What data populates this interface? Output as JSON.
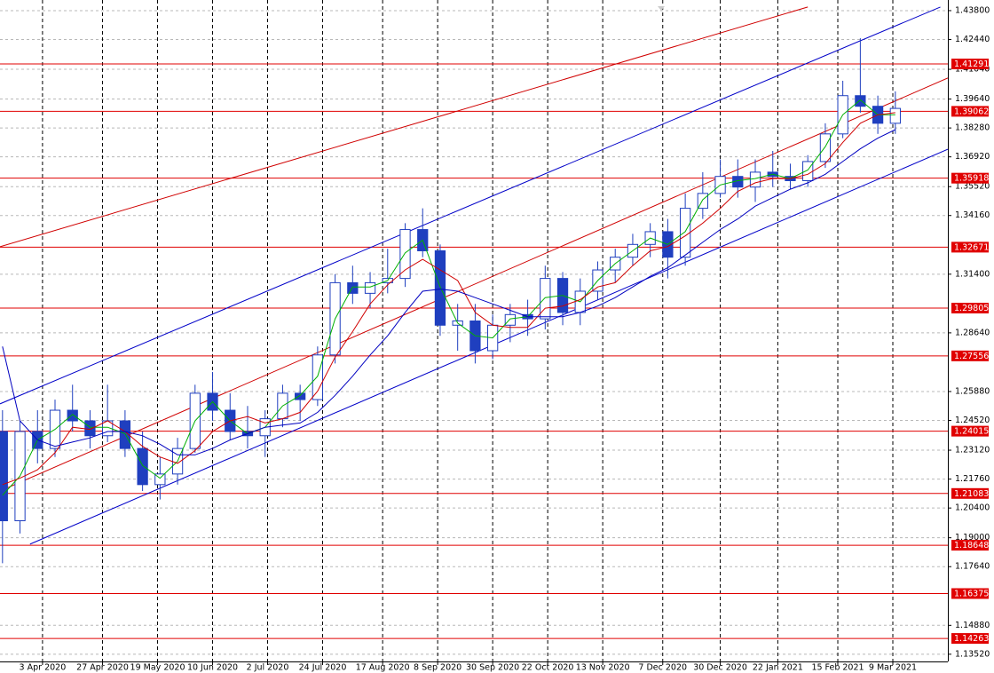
{
  "chart_data": {
    "type": "candlestick",
    "color": "#1f3fbf",
    "xlim": [
      "17 Mar 2020",
      "31 Mar 2021"
    ],
    "xticks": [
      "3 Apr 2020",
      "27 Apr 2020",
      "19 May 2020",
      "10 Jun 2020",
      "2 Jul 2020",
      "24 Jul 2020",
      "17 Aug 2020",
      "8 Sep 2020",
      "30 Sep 2020",
      "22 Oct 2020",
      "13 Nov 2020",
      "7 Dec 2020",
      "30 Dec 2020",
      "22 Jan 2021",
      "15 Feb 2021",
      "9 Mar 2021"
    ],
    "ylim": [
      1.1318,
      1.443
    ],
    "yticks": [
      {
        "value": 1.438,
        "label": "1.43800"
      },
      {
        "value": 1.4244,
        "label": "1.42440"
      },
      {
        "value": 1.4104,
        "label": "1.41040"
      },
      {
        "value": 1.3964,
        "label": "1.39640"
      },
      {
        "value": 1.3828,
        "label": "1.38280"
      },
      {
        "value": 1.3692,
        "label": "1.36920"
      },
      {
        "value": 1.3552,
        "label": "1.35520"
      },
      {
        "value": 1.3416,
        "label": "1.34160"
      },
      {
        "value": 1.314,
        "label": "1.31400"
      },
      {
        "value": 1.2864,
        "label": "1.28640"
      },
      {
        "value": 1.2588,
        "label": "1.25880"
      },
      {
        "value": 1.2452,
        "label": "1.24520"
      },
      {
        "value": 1.2312,
        "label": "1.23120"
      },
      {
        "value": 1.2176,
        "label": "1.21760"
      },
      {
        "value": 1.204,
        "label": "1.20400"
      },
      {
        "value": 1.19,
        "label": "1.19000"
      },
      {
        "value": 1.1764,
        "label": "1.17640"
      },
      {
        "value": 1.1488,
        "label": "1.14880"
      },
      {
        "value": 1.1352,
        "label": "1.13520"
      }
    ],
    "grid": true,
    "levels": [
      1.41291,
      1.39062,
      1.35918,
      1.32671,
      1.29805,
      1.27556,
      1.24015,
      1.21083,
      1.18648,
      1.16375,
      1.14263
    ],
    "level_color": "#e00000",
    "x": [
      "16 Mar 2020",
      "23 Mar 2020",
      "30 Mar 2020",
      "6 Apr 2020",
      "13 Apr 2020",
      "20 Apr 2020",
      "27 Apr 2020",
      "4 May 2020",
      "11 May 2020",
      "18 May 2020",
      "25 May 2020",
      "1 Jun 2020",
      "8 Jun 2020",
      "15 Jun 2020",
      "22 Jun 2020",
      "29 Jun 2020",
      "6 Jul 2020",
      "13 Jul 2020",
      "20 Jul 2020",
      "27 Jul 2020",
      "3 Aug 2020",
      "10 Aug 2020",
      "17 Aug 2020",
      "24 Aug 2020",
      "31 Aug 2020",
      "7 Sep 2020",
      "14 Sep 2020",
      "21 Sep 2020",
      "28 Sep 2020",
      "5 Oct 2020",
      "12 Oct 2020",
      "19 Oct 2020",
      "26 Oct 2020",
      "2 Nov 2020",
      "9 Nov 2020",
      "16 Nov 2020",
      "23 Nov 2020",
      "30 Nov 2020",
      "7 Dec 2020",
      "14 Dec 2020",
      "21 Dec 2020",
      "28 Dec 2020",
      "4 Jan 2021",
      "11 Jan 2021",
      "18 Jan 2021",
      "25 Jan 2021",
      "1 Feb 2021",
      "8 Feb 2021",
      "15 Feb 2021",
      "22 Feb 2021",
      "1 Mar 2021",
      "8 Mar 2021"
    ],
    "open": [
      1.24,
      1.198,
      1.24,
      1.232,
      1.25,
      1.245,
      1.238,
      1.245,
      1.232,
      1.215,
      1.22,
      1.232,
      1.258,
      1.25,
      1.24,
      1.238,
      1.246,
      1.258,
      1.255,
      1.276,
      1.31,
      1.305,
      1.31,
      1.312,
      1.335,
      1.325,
      1.29,
      1.292,
      1.278,
      1.29,
      1.295,
      1.293,
      1.312,
      1.296,
      1.306,
      1.316,
      1.322,
      1.328,
      1.334,
      1.322,
      1.345,
      1.352,
      1.36,
      1.355,
      1.362,
      1.36,
      1.358,
      1.367,
      1.38,
      1.398,
      1.393,
      1.385
    ],
    "high": [
      1.25,
      1.245,
      1.25,
      1.255,
      1.262,
      1.25,
      1.262,
      1.25,
      1.24,
      1.228,
      1.237,
      1.262,
      1.268,
      1.258,
      1.252,
      1.25,
      1.262,
      1.262,
      1.28,
      1.314,
      1.318,
      1.315,
      1.326,
      1.338,
      1.345,
      1.328,
      1.3,
      1.3,
      1.295,
      1.3,
      1.302,
      1.318,
      1.315,
      1.312,
      1.32,
      1.326,
      1.333,
      1.338,
      1.34,
      1.352,
      1.362,
      1.368,
      1.368,
      1.368,
      1.372,
      1.366,
      1.37,
      1.385,
      1.405,
      1.425,
      1.398,
      1.4
    ],
    "low": [
      1.178,
      1.192,
      1.225,
      1.228,
      1.24,
      1.232,
      1.235,
      1.228,
      1.212,
      1.208,
      1.215,
      1.23,
      1.245,
      1.236,
      1.232,
      1.228,
      1.242,
      1.245,
      1.252,
      1.272,
      1.3,
      1.298,
      1.305,
      1.308,
      1.322,
      1.285,
      1.278,
      1.272,
      1.274,
      1.282,
      1.285,
      1.288,
      1.29,
      1.29,
      1.302,
      1.31,
      1.318,
      1.322,
      1.312,
      1.318,
      1.34,
      1.35,
      1.35,
      1.348,
      1.355,
      1.354,
      1.355,
      1.364,
      1.378,
      1.39,
      1.38,
      1.38
    ],
    "close": [
      1.198,
      1.24,
      1.232,
      1.25,
      1.245,
      1.238,
      1.245,
      1.232,
      1.215,
      1.22,
      1.232,
      1.258,
      1.25,
      1.24,
      1.238,
      1.246,
      1.258,
      1.255,
      1.276,
      1.31,
      1.305,
      1.31,
      1.312,
      1.335,
      1.325,
      1.29,
      1.292,
      1.278,
      1.29,
      1.295,
      1.293,
      1.312,
      1.296,
      1.306,
      1.316,
      1.322,
      1.328,
      1.334,
      1.322,
      1.345,
      1.352,
      1.36,
      1.355,
      1.362,
      1.36,
      1.358,
      1.367,
      1.38,
      1.398,
      1.393,
      1.385,
      1.392
    ],
    "lines": [
      {
        "color": "#00b000",
        "values": [
          1.21,
          1.219,
          1.236,
          1.241,
          1.248,
          1.242,
          1.242,
          1.239,
          1.224,
          1.218,
          1.226,
          1.245,
          1.254,
          1.245,
          1.239,
          1.242,
          1.252,
          1.257,
          1.266,
          1.293,
          1.308,
          1.308,
          1.311,
          1.324,
          1.33,
          1.308,
          1.291,
          1.285,
          1.284,
          1.293,
          1.294,
          1.303,
          1.304,
          1.301,
          1.311,
          1.319,
          1.325,
          1.331,
          1.328,
          1.334,
          1.349,
          1.356,
          1.358,
          1.359,
          1.361,
          1.359,
          1.363,
          1.374,
          1.389,
          1.396,
          1.389,
          1.389
        ]
      },
      {
        "color": "#d00000",
        "values": [
          1.215,
          1.218,
          1.222,
          1.23,
          1.242,
          1.241,
          1.245,
          1.24,
          1.233,
          1.228,
          1.225,
          1.231,
          1.24,
          1.245,
          1.247,
          1.244,
          1.246,
          1.249,
          1.259,
          1.275,
          1.287,
          1.3,
          1.309,
          1.316,
          1.321,
          1.316,
          1.311,
          1.296,
          1.29,
          1.289,
          1.289,
          1.298,
          1.299,
          1.302,
          1.308,
          1.31,
          1.318,
          1.325,
          1.327,
          1.332,
          1.338,
          1.345,
          1.353,
          1.357,
          1.359,
          1.359,
          1.361,
          1.366,
          1.376,
          1.385,
          1.389,
          1.39
        ]
      },
      {
        "color": "#0000c0",
        "values": [
          1.28,
          1.245,
          1.236,
          1.233,
          1.235,
          1.237,
          1.24,
          1.24,
          1.238,
          1.234,
          1.229,
          1.229,
          1.232,
          1.236,
          1.239,
          1.242,
          1.243,
          1.244,
          1.249,
          1.257,
          1.266,
          1.276,
          1.285,
          1.296,
          1.306,
          1.307,
          1.306,
          1.303,
          1.3,
          1.297,
          1.294,
          1.294,
          1.294,
          1.296,
          1.299,
          1.303,
          1.308,
          1.313,
          1.317,
          1.323,
          1.329,
          1.335,
          1.34,
          1.346,
          1.35,
          1.354,
          1.357,
          1.361,
          1.367,
          1.373,
          1.378,
          1.382
        ]
      }
    ],
    "trendlines": [
      {
        "color": "#0000c8",
        "x": [
          "17 Mar 2020",
          "28 Mar 2021"
        ],
        "y": [
          1.253,
          1.4397
        ]
      },
      {
        "color": "#0000c8",
        "x": [
          "29 Mar 2020",
          "31 Mar 2021"
        ],
        "y": [
          1.187,
          1.3728
        ]
      },
      {
        "color": "#d00000",
        "x": [
          "17 Mar 2020",
          "3 Feb 2021"
        ],
        "y": [
          1.3269,
          1.4397
        ]
      },
      {
        "color": "#d00000",
        "x": [
          "17 Mar 2020",
          "31 Mar 2021"
        ],
        "y": [
          1.212,
          1.4063
        ]
      }
    ]
  }
}
